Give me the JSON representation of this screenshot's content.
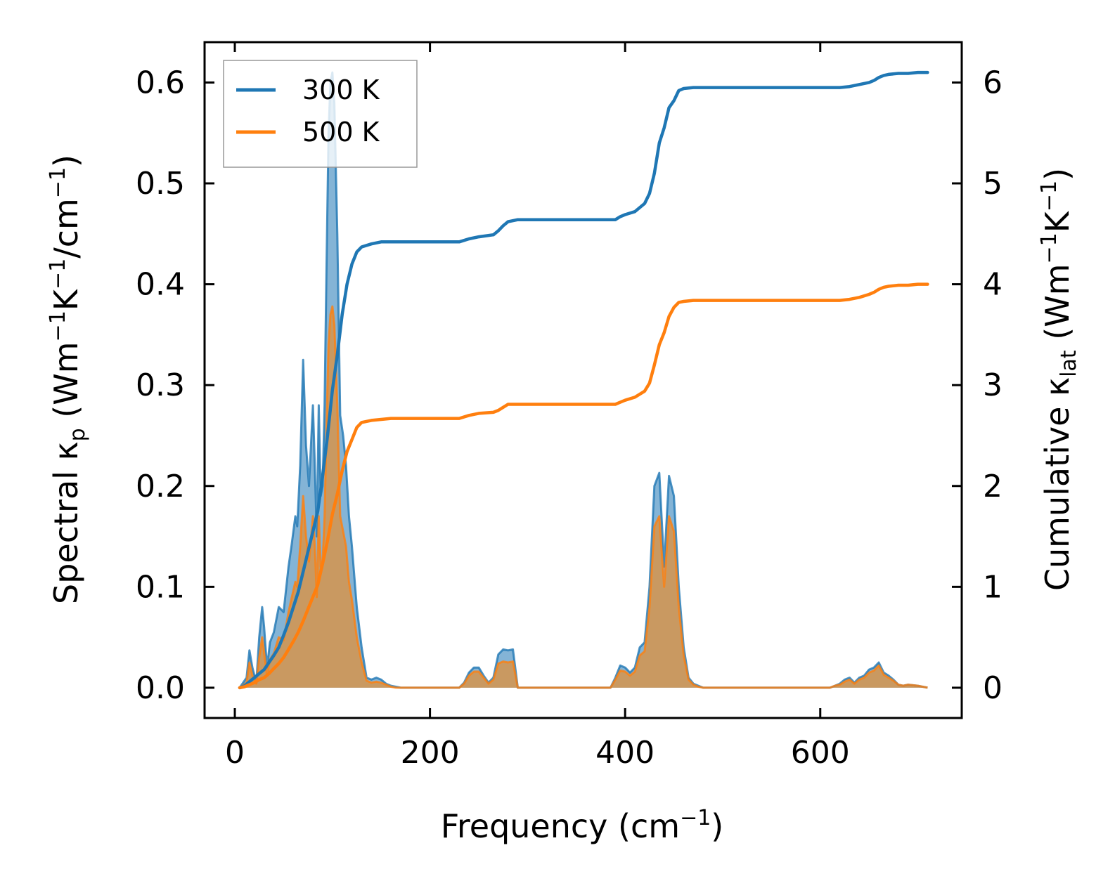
{
  "chart_data": {
    "type": "line",
    "x_label": {
      "text": "Frequency (cm",
      "sup": "−1",
      "close": ")"
    },
    "y_left_label": {
      "text": "Spectral κ",
      "sub": "p",
      "rest": " (Wm",
      "sup1": "−1",
      "k": "K",
      "sup2": "−1",
      "tail": "/cm",
      "sup3": "−1",
      "close": ")"
    },
    "y_right_label": {
      "text": "Cumulative κ",
      "sub": "lat",
      "rest": " (Wm",
      "sup1": "−1",
      "k": "K",
      "sup2": "−1",
      "close": ")"
    },
    "x_ticks": [
      "0",
      "200",
      "400",
      "600"
    ],
    "x_tick_values": [
      0,
      200,
      400,
      600
    ],
    "y_left_ticks": [
      "0.0",
      "0.1",
      "0.2",
      "0.3",
      "0.4",
      "0.5",
      "0.6"
    ],
    "y_left_tick_values": [
      0.0,
      0.1,
      0.2,
      0.3,
      0.4,
      0.5,
      0.6
    ],
    "y_right_ticks": [
      "0",
      "1",
      "2",
      "3",
      "4",
      "5",
      "6"
    ],
    "y_right_tick_values": [
      0,
      1,
      2,
      3,
      4,
      5,
      6
    ],
    "xlim": [
      -31,
      745
    ],
    "ylim_left": [
      -0.03,
      0.64
    ],
    "ylim_right": [
      -0.3,
      6.4
    ],
    "legend": {
      "position": "upper-left",
      "entries": [
        "300 K",
        "500 K"
      ]
    },
    "series": [
      {
        "name": "300 K",
        "color": "#1f77b4",
        "spectral_x": [
          5,
          12,
          15,
          18,
          22,
          25,
          28,
          30,
          33,
          36,
          40,
          45,
          50,
          55,
          58,
          62,
          64,
          67,
          70,
          73,
          76,
          80,
          82,
          84,
          86,
          88,
          90,
          92,
          94,
          96,
          98,
          100,
          102,
          105,
          108,
          111,
          114,
          117,
          120,
          125,
          130,
          135,
          140,
          145,
          150,
          155,
          160,
          165,
          170,
          175,
          180,
          230,
          235,
          240,
          245,
          250,
          255,
          260,
          265,
          270,
          275,
          280,
          285,
          290,
          380,
          385,
          390,
          395,
          400,
          405,
          410,
          415,
          420,
          425,
          430,
          435,
          440,
          445,
          450,
          455,
          460,
          465,
          470,
          475,
          480,
          610,
          615,
          620,
          625,
          630,
          635,
          640,
          645,
          650,
          655,
          660,
          665,
          670,
          675,
          680,
          685,
          690,
          700,
          710
        ],
        "spectral_y": [
          0.0,
          0.01,
          0.037,
          0.02,
          0.005,
          0.05,
          0.08,
          0.06,
          0.02,
          0.045,
          0.055,
          0.08,
          0.075,
          0.12,
          0.14,
          0.17,
          0.16,
          0.22,
          0.325,
          0.24,
          0.2,
          0.28,
          0.22,
          0.15,
          0.28,
          0.19,
          0.2,
          0.28,
          0.42,
          0.55,
          0.6,
          0.61,
          0.58,
          0.45,
          0.27,
          0.25,
          0.22,
          0.17,
          0.14,
          0.08,
          0.04,
          0.01,
          0.008,
          0.01,
          0.008,
          0.004,
          0.002,
          0.001,
          0.0,
          0.0,
          0.0,
          0.0,
          0.005,
          0.015,
          0.02,
          0.02,
          0.012,
          0.005,
          0.01,
          0.033,
          0.038,
          0.037,
          0.038,
          0.0,
          0.0,
          0.0,
          0.01,
          0.022,
          0.02,
          0.015,
          0.02,
          0.04,
          0.045,
          0.1,
          0.2,
          0.213,
          0.12,
          0.21,
          0.19,
          0.1,
          0.04,
          0.01,
          0.004,
          0.002,
          0.0,
          0.0,
          0.002,
          0.004,
          0.008,
          0.01,
          0.005,
          0.01,
          0.012,
          0.018,
          0.02,
          0.025,
          0.015,
          0.012,
          0.008,
          0.003,
          0.002,
          0.003,
          0.002,
          0.0
        ],
        "cumulative_x": [
          5,
          10,
          15,
          20,
          25,
          30,
          35,
          40,
          45,
          50,
          55,
          60,
          65,
          70,
          75,
          80,
          85,
          90,
          95,
          100,
          105,
          110,
          115,
          120,
          125,
          130,
          140,
          150,
          160,
          180,
          230,
          240,
          250,
          265,
          270,
          275,
          280,
          290,
          390,
          395,
          400,
          410,
          420,
          425,
          430,
          435,
          440,
          445,
          450,
          455,
          460,
          470,
          480,
          600,
          615,
          620,
          630,
          640,
          650,
          655,
          660,
          665,
          670,
          680,
          690,
          700,
          710
        ],
        "cumulative_y": [
          0.0,
          0.02,
          0.06,
          0.1,
          0.14,
          0.18,
          0.25,
          0.32,
          0.4,
          0.52,
          0.65,
          0.8,
          0.95,
          1.15,
          1.35,
          1.55,
          1.75,
          2.1,
          2.5,
          2.95,
          3.3,
          3.7,
          4.0,
          4.2,
          4.32,
          4.37,
          4.4,
          4.42,
          4.42,
          4.42,
          4.42,
          4.45,
          4.47,
          4.49,
          4.53,
          4.58,
          4.62,
          4.64,
          4.64,
          4.67,
          4.69,
          4.72,
          4.8,
          4.9,
          5.1,
          5.4,
          5.55,
          5.75,
          5.82,
          5.92,
          5.94,
          5.95,
          5.95,
          5.95,
          5.95,
          5.95,
          5.96,
          5.98,
          6.0,
          6.02,
          6.05,
          6.07,
          6.08,
          6.09,
          6.09,
          6.1,
          6.1
        ]
      },
      {
        "name": "500 K",
        "color": "#ff7f0e",
        "spectral_x": [
          5,
          12,
          15,
          18,
          22,
          25,
          28,
          30,
          33,
          36,
          40,
          45,
          50,
          55,
          58,
          62,
          64,
          67,
          70,
          73,
          76,
          80,
          82,
          84,
          86,
          88,
          90,
          92,
          94,
          96,
          98,
          100,
          102,
          105,
          108,
          111,
          114,
          117,
          120,
          125,
          130,
          135,
          140,
          145,
          150,
          155,
          160,
          165,
          170,
          175,
          180,
          230,
          235,
          240,
          245,
          250,
          255,
          260,
          265,
          270,
          275,
          280,
          285,
          290,
          380,
          385,
          390,
          395,
          400,
          405,
          410,
          415,
          420,
          425,
          430,
          435,
          440,
          445,
          450,
          455,
          460,
          465,
          470,
          475,
          480,
          610,
          615,
          620,
          625,
          630,
          635,
          640,
          645,
          650,
          655,
          660,
          665,
          670,
          675,
          680,
          685,
          690,
          700,
          710
        ],
        "spectral_y": [
          0.0,
          0.005,
          0.025,
          0.012,
          0.004,
          0.03,
          0.05,
          0.035,
          0.012,
          0.028,
          0.034,
          0.05,
          0.047,
          0.075,
          0.088,
          0.105,
          0.1,
          0.14,
          0.19,
          0.15,
          0.125,
          0.17,
          0.14,
          0.09,
          0.17,
          0.12,
          0.125,
          0.17,
          0.26,
          0.34,
          0.37,
          0.378,
          0.36,
          0.28,
          0.17,
          0.155,
          0.14,
          0.105,
          0.087,
          0.05,
          0.025,
          0.007,
          0.005,
          0.006,
          0.005,
          0.003,
          0.001,
          0.0,
          0.0,
          0.0,
          0.0,
          0.0,
          0.004,
          0.012,
          0.016,
          0.016,
          0.01,
          0.004,
          0.008,
          0.024,
          0.026,
          0.025,
          0.026,
          0.0,
          0.0,
          0.0,
          0.008,
          0.017,
          0.016,
          0.012,
          0.016,
          0.032,
          0.036,
          0.08,
          0.16,
          0.17,
          0.1,
          0.17,
          0.155,
          0.08,
          0.032,
          0.008,
          0.003,
          0.001,
          0.0,
          0.0,
          0.002,
          0.003,
          0.006,
          0.008,
          0.004,
          0.008,
          0.01,
          0.015,
          0.017,
          0.022,
          0.013,
          0.01,
          0.007,
          0.003,
          0.002,
          0.003,
          0.002,
          0.0
        ],
        "cumulative_x": [
          5,
          10,
          15,
          20,
          25,
          30,
          35,
          40,
          45,
          50,
          55,
          60,
          65,
          70,
          75,
          80,
          85,
          90,
          95,
          100,
          105,
          110,
          115,
          120,
          125,
          130,
          140,
          150,
          160,
          180,
          230,
          240,
          250,
          265,
          270,
          275,
          280,
          290,
          390,
          395,
          400,
          410,
          420,
          425,
          430,
          435,
          440,
          445,
          450,
          455,
          460,
          470,
          480,
          600,
          615,
          620,
          630,
          640,
          650,
          655,
          660,
          665,
          670,
          680,
          690,
          700,
          710
        ],
        "cumulative_y": [
          0.0,
          0.01,
          0.03,
          0.05,
          0.08,
          0.1,
          0.14,
          0.19,
          0.24,
          0.3,
          0.38,
          0.46,
          0.55,
          0.66,
          0.78,
          0.9,
          1.02,
          1.23,
          1.46,
          1.72,
          1.92,
          2.15,
          2.34,
          2.46,
          2.58,
          2.63,
          2.65,
          2.66,
          2.67,
          2.67,
          2.67,
          2.7,
          2.72,
          2.73,
          2.75,
          2.78,
          2.81,
          2.81,
          2.81,
          2.83,
          2.85,
          2.88,
          2.94,
          3.02,
          3.2,
          3.4,
          3.52,
          3.68,
          3.77,
          3.82,
          3.83,
          3.84,
          3.84,
          3.84,
          3.84,
          3.84,
          3.85,
          3.87,
          3.9,
          3.92,
          3.95,
          3.97,
          3.98,
          3.99,
          3.99,
          4.0,
          4.0
        ]
      }
    ]
  }
}
